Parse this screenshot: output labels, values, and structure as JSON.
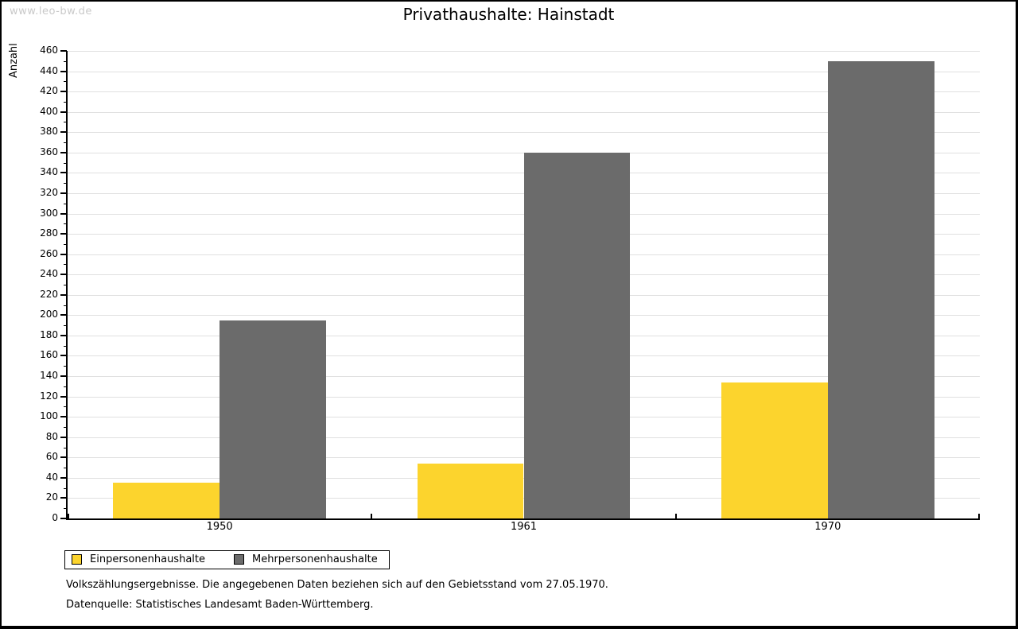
{
  "page": {
    "watermark": "www.leo-bw.de",
    "title": "Privathaushalte: Hainstadt"
  },
  "chart_data": {
    "type": "bar",
    "title": "Privathaushalte: Hainstadt",
    "ylabel": "Anzahl",
    "xlabel": "",
    "categories": [
      "1950",
      "1961",
      "1970"
    ],
    "series": [
      {
        "name": "Einpersonenhaushalte",
        "color": "#FCD42D",
        "values": [
          35,
          54,
          134
        ]
      },
      {
        "name": "Mehrpersonenhaushalte",
        "color": "#6B6B6B",
        "values": [
          195,
          360,
          450
        ]
      }
    ],
    "ylim": [
      0,
      460
    ],
    "ytick_major": 20,
    "ytick_minor": 10,
    "grid": "horizontal-major",
    "legend_position": "bottom-left"
  },
  "footer": {
    "note": "Volkszählungsergebnisse. Die angegebenen Daten beziehen sich auf den Gebietsstand vom 27.05.1970.",
    "source": "Datenquelle: Statistisches Landesamt Baden-Württemberg."
  },
  "colors": {
    "bar_yellow": "#FCD42D",
    "bar_gray": "#6B6B6B",
    "gridline": "#E0E0E0",
    "axis": "#000000",
    "watermark": "#C9C9C9",
    "background": "#FFFFFF"
  }
}
